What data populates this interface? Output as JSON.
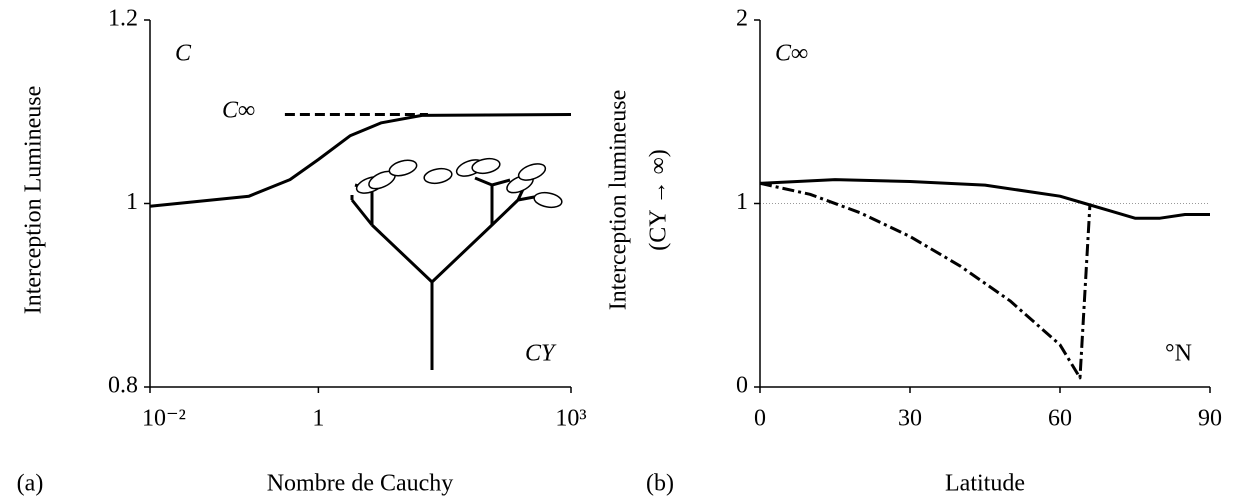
{
  "chart_data": [
    {
      "type": "line",
      "panel_label": "(a)",
      "xlabel": "Nombre de Cauchy",
      "ylabel": [
        "Interception Lumineuse"
      ],
      "xscale": "log",
      "xlim": [
        0.01,
        1000
      ],
      "xticks": [
        {
          "value": 0.01,
          "label": "10⁻²"
        },
        1,
        {
          "value": 1000,
          "label": "10³"
        }
      ],
      "ylim": [
        0.8,
        1.2
      ],
      "yticks": [
        0.8,
        1,
        1.2
      ],
      "series": [
        {
          "color": "#000000",
          "style": "solid",
          "x": [
            0.01,
            0.15,
            0.46,
            1,
            2.4,
            5.6,
            17,
            1000
          ],
          "values": [
            0.997,
            1.008,
            1.026,
            1.048,
            1.074,
            1.088,
            1.096,
            1.097
          ]
        }
      ],
      "reference": {
        "label": "C∞",
        "value": 1.097,
        "x": [
          0.4,
          20
        ],
        "style": "dashed",
        "color": "#000000"
      },
      "annotations": [
        "C",
        "CY"
      ]
    },
    {
      "type": "line",
      "panel_label": "(b)",
      "xlabel": "Latitude",
      "ylabel": [
        "Interception lumineuse",
        "(CY → ∞)"
      ],
      "xlim": [
        0,
        90
      ],
      "xticks": [
        0,
        30,
        60,
        90
      ],
      "ylim": [
        0,
        2
      ],
      "yticks": [
        0,
        1,
        2
      ],
      "series": [
        {
          "color": "#000000",
          "style": "solid",
          "x": [
            0,
            15,
            30,
            45,
            55,
            60,
            65,
            70,
            75,
            80,
            85,
            90
          ],
          "values": [
            1.11,
            1.13,
            1.12,
            1.1,
            1.06,
            1.04,
            1.0,
            0.96,
            0.92,
            0.92,
            0.94,
            0.94
          ]
        },
        {
          "color": "#000000",
          "style": "dashdot",
          "x": [
            0,
            10,
            20,
            30,
            40,
            50,
            60,
            64,
            66
          ],
          "values": [
            1.11,
            1.05,
            0.95,
            0.82,
            0.66,
            0.47,
            0.23,
            0.05,
            1.0
          ]
        }
      ],
      "reference": {
        "value": 1,
        "x": [
          0,
          90
        ],
        "style": "dotted",
        "color": "#999999"
      },
      "annotations": [
        "C∞",
        "°N"
      ]
    }
  ]
}
